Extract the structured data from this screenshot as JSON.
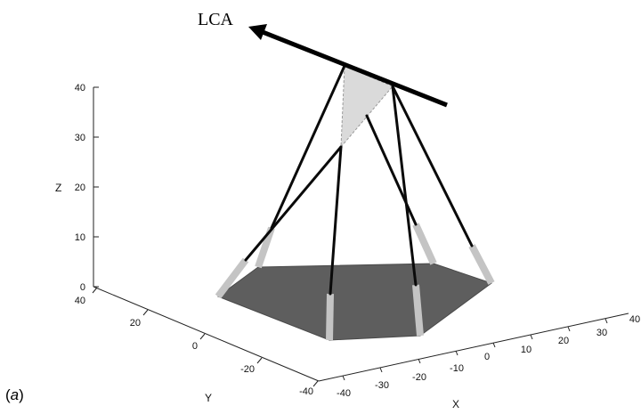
{
  "label": "LCA",
  "panel_label": {
    "open": "(",
    "letter": "a",
    "close": ")"
  },
  "axes": {
    "z": {
      "name": "Z",
      "ticks": [
        "0",
        "10",
        "20",
        "30",
        "40"
      ]
    },
    "y": {
      "name": "Y",
      "ticks": [
        "40",
        "20",
        "0",
        "-20",
        "-40"
      ]
    },
    "x": {
      "name": "X",
      "ticks": [
        "-40",
        "-30",
        "-20",
        "-10",
        "0",
        "10",
        "20",
        "30",
        "40"
      ]
    }
  },
  "colors": {
    "base_plate": "#5e5e5e",
    "triangle": "#dadada",
    "leg_grey": "#c4c4c4",
    "leg_black": "#0a0a0a",
    "axis": "#222222"
  }
}
